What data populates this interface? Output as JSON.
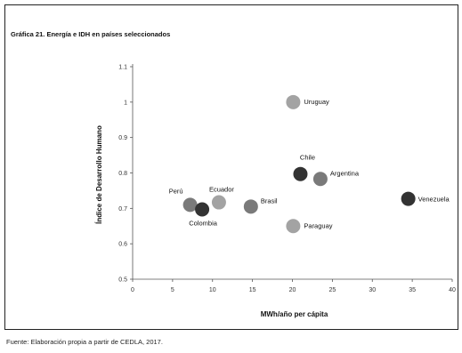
{
  "title": "Gráfica 21. Energía e IDH en países seleccionados",
  "source": "Fuente: Elaboración propia a partir de CEDLA, 2017.",
  "chart_data": {
    "type": "scatter",
    "xlabel": "MWh/año per cápita",
    "ylabel": "Índice de Desarrollo Humano",
    "xlim": [
      0,
      40
    ],
    "ylim": [
      0.5,
      1.1
    ],
    "xticks": [
      "0",
      "5",
      "10",
      "15",
      "20",
      "25",
      "30",
      "35",
      "40"
    ],
    "yticks": [
      "0.5",
      "0.6",
      "0.7",
      "0.8",
      "0.9",
      "1",
      "1.1"
    ],
    "grid": false,
    "points": [
      {
        "label": "Uruguay",
        "x": 20.1,
        "y": 1.0,
        "color": "#a3a3a3"
      },
      {
        "label": "Chile",
        "x": 21.0,
        "y": 0.797,
        "color": "#333333"
      },
      {
        "label": "Argentina",
        "x": 23.5,
        "y": 0.783,
        "color": "#7a7a7a"
      },
      {
        "label": "Venezuela",
        "x": 34.5,
        "y": 0.727,
        "color": "#333333"
      },
      {
        "label": "Perú",
        "x": 7.2,
        "y": 0.71,
        "color": "#7a7a7a"
      },
      {
        "label": "Ecuador",
        "x": 10.8,
        "y": 0.717,
        "color": "#a3a3a3"
      },
      {
        "label": "Colombia",
        "x": 8.7,
        "y": 0.697,
        "color": "#333333"
      },
      {
        "label": "Brasil",
        "x": 14.8,
        "y": 0.705,
        "color": "#7a7a7a"
      },
      {
        "label": "Paraguay",
        "x": 20.1,
        "y": 0.65,
        "color": "#a3a3a3"
      }
    ]
  }
}
